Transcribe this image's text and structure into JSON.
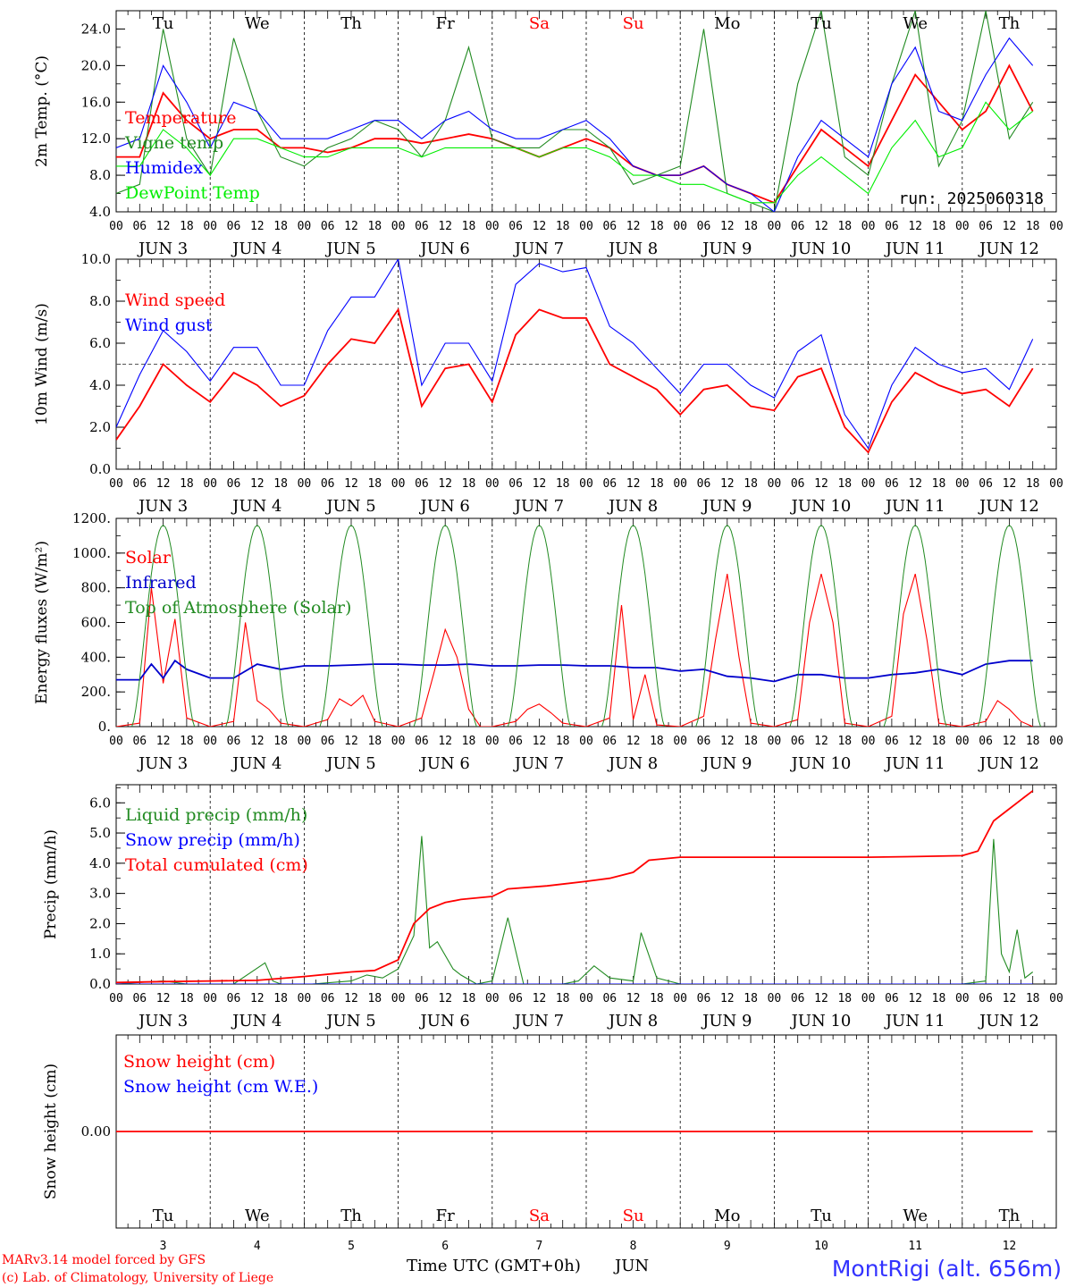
{
  "run_label": "run: 2025060318",
  "days": [
    {
      "abbr": "Tu",
      "num": "3",
      "color": "#000000"
    },
    {
      "abbr": "We",
      "num": "4",
      "color": "#000000"
    },
    {
      "abbr": "Th",
      "num": "5",
      "color": "#000000"
    },
    {
      "abbr": "Fr",
      "num": "6",
      "color": "#000000"
    },
    {
      "abbr": "Sa",
      "num": "7",
      "color": "#ff0000"
    },
    {
      "abbr": "Su",
      "num": "8",
      "color": "#ff0000"
    },
    {
      "abbr": "Mo",
      "num": "9",
      "color": "#000000"
    },
    {
      "abbr": "Tu",
      "num": "10",
      "color": "#000000"
    },
    {
      "abbr": "We",
      "num": "11",
      "color": "#000000"
    },
    {
      "abbr": "Th",
      "num": "12",
      "color": "#000000"
    }
  ],
  "month": "JUN",
  "hour_ticks": [
    "00",
    "06",
    "12",
    "18"
  ],
  "footer": {
    "line1": "MARv3.14 model forced by GFS",
    "line2": "(c) Lab. of Climatology, University of Liege",
    "xtitle": "Time UTC (GMT+0h)",
    "xtitle_month": "JUN",
    "station": "MontRigi (alt. 656m)"
  },
  "chart_data": [
    {
      "type": "line",
      "ylabel": "2m Temp. (°C)",
      "ylim": [
        4.0,
        26.0
      ],
      "yticks": [
        "4.0",
        "8.0",
        "12.0",
        "16.0",
        "20.0",
        "24.0"
      ],
      "yticks_values": [
        4,
        8,
        12,
        16,
        20,
        24
      ],
      "x_unit": "hours since Jun 3 00 UTC",
      "series": [
        {
          "name": "Temperature",
          "color": "#ff0000",
          "x": [
            0,
            6,
            12,
            18,
            24,
            30,
            36,
            42,
            48,
            54,
            60,
            66,
            72,
            78,
            84,
            90,
            96,
            102,
            108,
            114,
            120,
            126,
            132,
            138,
            144,
            150,
            156,
            162,
            168,
            174,
            180,
            186,
            192,
            198,
            204,
            210,
            216,
            222,
            228,
            234
          ],
          "values": [
            10,
            10,
            17,
            14,
            12,
            13,
            13,
            11,
            11,
            10.5,
            11,
            12,
            12,
            11.5,
            12,
            12.5,
            12,
            11,
            10,
            11,
            12,
            11,
            9,
            8,
            8,
            9,
            7,
            6,
            5,
            9,
            13,
            11,
            9,
            14,
            19,
            16,
            13,
            15,
            20,
            15
          ]
        },
        {
          "name": "Vigne temp",
          "color": "#228b22",
          "x": [
            0,
            6,
            12,
            18,
            24,
            30,
            36,
            42,
            48,
            54,
            60,
            66,
            72,
            78,
            84,
            90,
            96,
            102,
            108,
            114,
            120,
            126,
            132,
            138,
            144,
            150,
            156,
            162,
            168,
            174,
            180,
            186,
            192,
            198,
            204,
            210,
            216,
            222,
            228,
            234
          ],
          "values": [
            6,
            7,
            24,
            12,
            8,
            23,
            15,
            10,
            9,
            11,
            12,
            14,
            13,
            10,
            14,
            22,
            12,
            11,
            11,
            13,
            13,
            11,
            7,
            8,
            9,
            24,
            6,
            5,
            4,
            18,
            26,
            10,
            8,
            18,
            26,
            9,
            14,
            26,
            12,
            16
          ]
        },
        {
          "name": "Humidex",
          "color": "#0000ff",
          "x": [
            0,
            6,
            12,
            18,
            24,
            30,
            36,
            42,
            48,
            54,
            60,
            66,
            72,
            78,
            84,
            90,
            96,
            102,
            108,
            114,
            120,
            126,
            132,
            138,
            144,
            150,
            156,
            162,
            168,
            174,
            180,
            186,
            192,
            198,
            204,
            210,
            216,
            222,
            228,
            234
          ],
          "values": [
            11,
            12,
            20,
            16,
            11,
            16,
            15,
            12,
            12,
            12,
            13,
            14,
            14,
            12,
            14,
            15,
            13,
            12,
            12,
            13,
            14,
            12,
            9,
            8,
            8,
            9,
            7,
            6,
            4,
            10,
            14,
            12,
            10,
            18,
            22,
            15,
            14,
            19,
            23,
            20
          ]
        },
        {
          "name": "DewPoint Temp",
          "color": "#00ee00",
          "x": [
            0,
            6,
            12,
            18,
            24,
            30,
            36,
            42,
            48,
            54,
            60,
            66,
            72,
            78,
            84,
            90,
            96,
            102,
            108,
            114,
            120,
            126,
            132,
            138,
            144,
            150,
            156,
            162,
            168,
            174,
            180,
            186,
            192,
            198,
            204,
            210,
            216,
            222,
            228,
            234
          ],
          "values": [
            9,
            9,
            13,
            11,
            8,
            12,
            12,
            11,
            10,
            10,
            11,
            11,
            11,
            10,
            11,
            11,
            11,
            11,
            10,
            11,
            11,
            10,
            8,
            8,
            7,
            7,
            6,
            5,
            5,
            8,
            10,
            8,
            6,
            11,
            14,
            10,
            11,
            16,
            13,
            15
          ]
        }
      ]
    },
    {
      "type": "line",
      "ylabel": "10m Wind (m/s)",
      "ylim": [
        0.0,
        10.0
      ],
      "yticks": [
        "0.0",
        "2.0",
        "4.0",
        "6.0",
        "8.0",
        "10.0"
      ],
      "yticks_values": [
        0,
        2,
        4,
        6,
        8,
        10
      ],
      "reference_line": 5.0,
      "series": [
        {
          "name": "Wind speed",
          "color": "#ff0000",
          "x": [
            0,
            6,
            12,
            18,
            24,
            30,
            36,
            42,
            48,
            54,
            60,
            66,
            72,
            78,
            84,
            90,
            96,
            102,
            108,
            114,
            120,
            126,
            132,
            138,
            144,
            150,
            156,
            162,
            168,
            174,
            180,
            186,
            192,
            198,
            204,
            210,
            216,
            222,
            228,
            234
          ],
          "values": [
            1.4,
            3.0,
            5.0,
            4.0,
            3.2,
            4.6,
            4.0,
            3.0,
            3.5,
            5.0,
            6.2,
            6.0,
            7.6,
            3.0,
            4.8,
            5.0,
            3.2,
            6.4,
            7.6,
            7.2,
            7.2,
            5.0,
            4.4,
            3.8,
            2.6,
            3.8,
            4.0,
            3.0,
            2.8,
            4.4,
            4.8,
            2.0,
            0.8,
            3.2,
            4.6,
            4.0,
            3.6,
            3.8,
            3.0,
            4.8
          ]
        },
        {
          "name": "Wind gust",
          "color": "#0000ff",
          "x": [
            0,
            6,
            12,
            18,
            24,
            30,
            36,
            42,
            48,
            54,
            60,
            66,
            72,
            78,
            84,
            90,
            96,
            102,
            108,
            114,
            120,
            126,
            132,
            138,
            144,
            150,
            156,
            162,
            168,
            174,
            180,
            186,
            192,
            198,
            204,
            210,
            216,
            222,
            228,
            234
          ],
          "values": [
            2.0,
            4.5,
            6.6,
            5.6,
            4.2,
            5.8,
            5.8,
            4.0,
            4.0,
            6.6,
            8.2,
            8.2,
            10.0,
            4.0,
            6.0,
            6.0,
            4.2,
            8.8,
            9.8,
            9.4,
            9.6,
            6.8,
            6.0,
            4.8,
            3.6,
            5.0,
            5.0,
            4.0,
            3.4,
            5.6,
            6.4,
            2.6,
            1.0,
            4.0,
            5.8,
            5.0,
            4.6,
            4.8,
            3.8,
            6.2
          ]
        }
      ]
    },
    {
      "type": "line",
      "ylabel": "Energy fluxes (W/m²)",
      "ylim": [
        0,
        1200
      ],
      "yticks": [
        "0.",
        "200.",
        "400.",
        "600.",
        "800.",
        "1000.",
        "1200."
      ],
      "yticks_values": [
        0,
        200,
        400,
        600,
        800,
        1000,
        1200
      ],
      "series": [
        {
          "name": "Solar",
          "color": "#ff0000",
          "x": [
            0,
            6,
            9,
            12,
            15,
            18,
            24,
            30,
            33,
            36,
            39,
            42,
            48,
            54,
            57,
            60,
            63,
            66,
            72,
            78,
            81,
            84,
            87,
            90,
            93,
            96,
            102,
            105,
            108,
            111,
            114,
            120,
            126,
            129,
            132,
            135,
            138,
            144,
            150,
            153,
            156,
            159,
            162,
            168,
            174,
            177,
            180,
            183,
            186,
            192,
            198,
            201,
            204,
            207,
            210,
            216,
            222,
            225,
            228,
            231,
            234
          ],
          "values": [
            0,
            20,
            800,
            250,
            620,
            50,
            0,
            30,
            600,
            150,
            100,
            20,
            0,
            40,
            160,
            120,
            180,
            30,
            0,
            50,
            300,
            560,
            400,
            100,
            0,
            0,
            30,
            100,
            130,
            80,
            20,
            0,
            50,
            700,
            40,
            300,
            10,
            0,
            60,
            500,
            880,
            400,
            20,
            0,
            40,
            600,
            880,
            600,
            20,
            0,
            60,
            650,
            880,
            500,
            20,
            0,
            30,
            150,
            100,
            30,
            0
          ]
        },
        {
          "name": "Infrared",
          "color": "#0000cc",
          "x": [
            0,
            6,
            9,
            12,
            15,
            18,
            24,
            30,
            36,
            42,
            48,
            54,
            60,
            66,
            72,
            78,
            84,
            90,
            96,
            102,
            108,
            114,
            120,
            126,
            132,
            138,
            144,
            150,
            156,
            162,
            168,
            174,
            180,
            186,
            192,
            198,
            204,
            210,
            216,
            222,
            228,
            234
          ],
          "values": [
            270,
            270,
            360,
            280,
            380,
            330,
            280,
            280,
            360,
            330,
            350,
            350,
            355,
            360,
            360,
            355,
            355,
            360,
            350,
            350,
            355,
            355,
            350,
            350,
            340,
            340,
            320,
            330,
            290,
            280,
            260,
            300,
            300,
            280,
            280,
            300,
            310,
            330,
            300,
            360,
            380,
            380
          ]
        },
        {
          "name": "Top of Atmosphere (Solar)",
          "color": "#228b22",
          "x": [],
          "values": [],
          "peak": 1160
        }
      ]
    },
    {
      "type": "line",
      "ylabel": "Precip (mm/h)",
      "ylim": [
        0.0,
        6.6
      ],
      "yticks": [
        "0.0",
        "1.0",
        "2.0",
        "3.0",
        "4.0",
        "5.0",
        "6.0"
      ],
      "yticks_values": [
        0,
        1,
        2,
        3,
        4,
        5,
        6
      ],
      "series": [
        {
          "name": "Liquid precip (mm/h)",
          "color": "#228b22",
          "x": [
            0,
            12,
            18,
            30,
            38,
            40,
            42,
            50,
            60,
            64,
            68,
            72,
            76,
            78,
            80,
            82,
            86,
            88,
            92,
            96,
            100,
            104,
            108,
            114,
            118,
            122,
            126,
            132,
            134,
            138,
            144,
            150,
            156,
            168,
            180,
            192,
            210,
            216,
            222,
            224,
            226,
            228,
            230,
            232,
            234
          ],
          "values": [
            0,
            0.1,
            0,
            0,
            0.7,
            0.1,
            0,
            0,
            0.1,
            0.3,
            0.2,
            0.5,
            1.6,
            4.9,
            1.2,
            1.4,
            0.5,
            0.3,
            0,
            0.1,
            2.2,
            0,
            0,
            0,
            0.1,
            0.6,
            0.2,
            0.1,
            1.7,
            0.2,
            0,
            0,
            0,
            0,
            0,
            0,
            0,
            0,
            0.1,
            4.8,
            1.0,
            0.4,
            1.8,
            0.2,
            0.4
          ]
        },
        {
          "name": "Snow precip (mm/h)",
          "color": "#0000ff",
          "x": [
            0,
            234
          ],
          "values": [
            0,
            0
          ]
        },
        {
          "name": "Total cumulated (cm)",
          "color": "#ff0000",
          "x": [
            0,
            12,
            24,
            36,
            48,
            60,
            66,
            72,
            76,
            80,
            84,
            88,
            96,
            100,
            110,
            120,
            126,
            132,
            136,
            144,
            150,
            156,
            168,
            180,
            192,
            204,
            216,
            220,
            224,
            228,
            232,
            234
          ],
          "values": [
            0.05,
            0.08,
            0.1,
            0.12,
            0.25,
            0.4,
            0.45,
            0.8,
            2.0,
            2.5,
            2.7,
            2.8,
            2.9,
            3.15,
            3.25,
            3.4,
            3.5,
            3.7,
            4.1,
            4.2,
            4.2,
            4.2,
            4.2,
            4.2,
            4.2,
            4.22,
            4.25,
            4.4,
            5.4,
            5.8,
            6.2,
            6.4
          ]
        }
      ]
    },
    {
      "type": "line",
      "ylabel": "Snow height (cm)",
      "yticks": [
        "0.00"
      ],
      "yticks_values": [
        0
      ],
      "series": [
        {
          "name": "Snow height (cm)",
          "color": "#ff0000",
          "x": [
            0,
            234
          ],
          "values": [
            0,
            0
          ]
        },
        {
          "name": "Snow height (cm W.E.)",
          "color": "#0000ff",
          "x": [],
          "values": []
        }
      ]
    }
  ]
}
